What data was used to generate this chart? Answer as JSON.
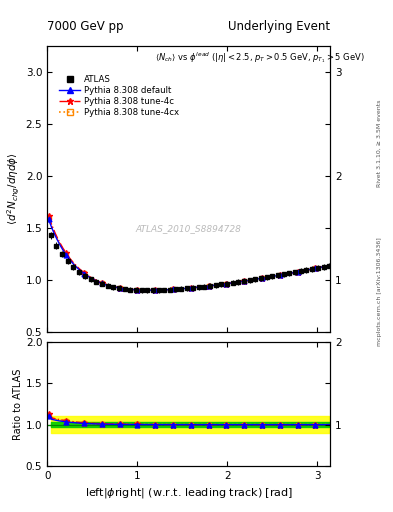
{
  "title_left": "7000 GeV pp",
  "title_right": "Underlying Event",
  "ylabel_main": "$\\langle d^2 N_{chg}/d\\eta d\\phi \\rangle$",
  "ylabel_ratio": "Ratio to ATLAS",
  "xlabel": "left|\\u03d5right| (w.r.t. leading track) [rad]",
  "watermark": "ATLAS_2010_S8894728",
  "right_label_top": "Rivet 3.1.10, ≥ 3.5M events",
  "right_label_bottom": "mcplots.cern.ch [arXiv:1306.3436]",
  "ylim_main": [
    0.5,
    3.25
  ],
  "ylim_ratio": [
    0.5,
    2.0
  ],
  "xlim": [
    0.0,
    3.14159
  ],
  "background_color": "#ffffff",
  "panel_bg": "#ffffff",
  "atlas_color": "#000000",
  "line_colors": [
    "#0000ff",
    "#ff0000",
    "#ff8800"
  ],
  "green_band_color": "#00cc00",
  "yellow_band_color": "#ffff00"
}
